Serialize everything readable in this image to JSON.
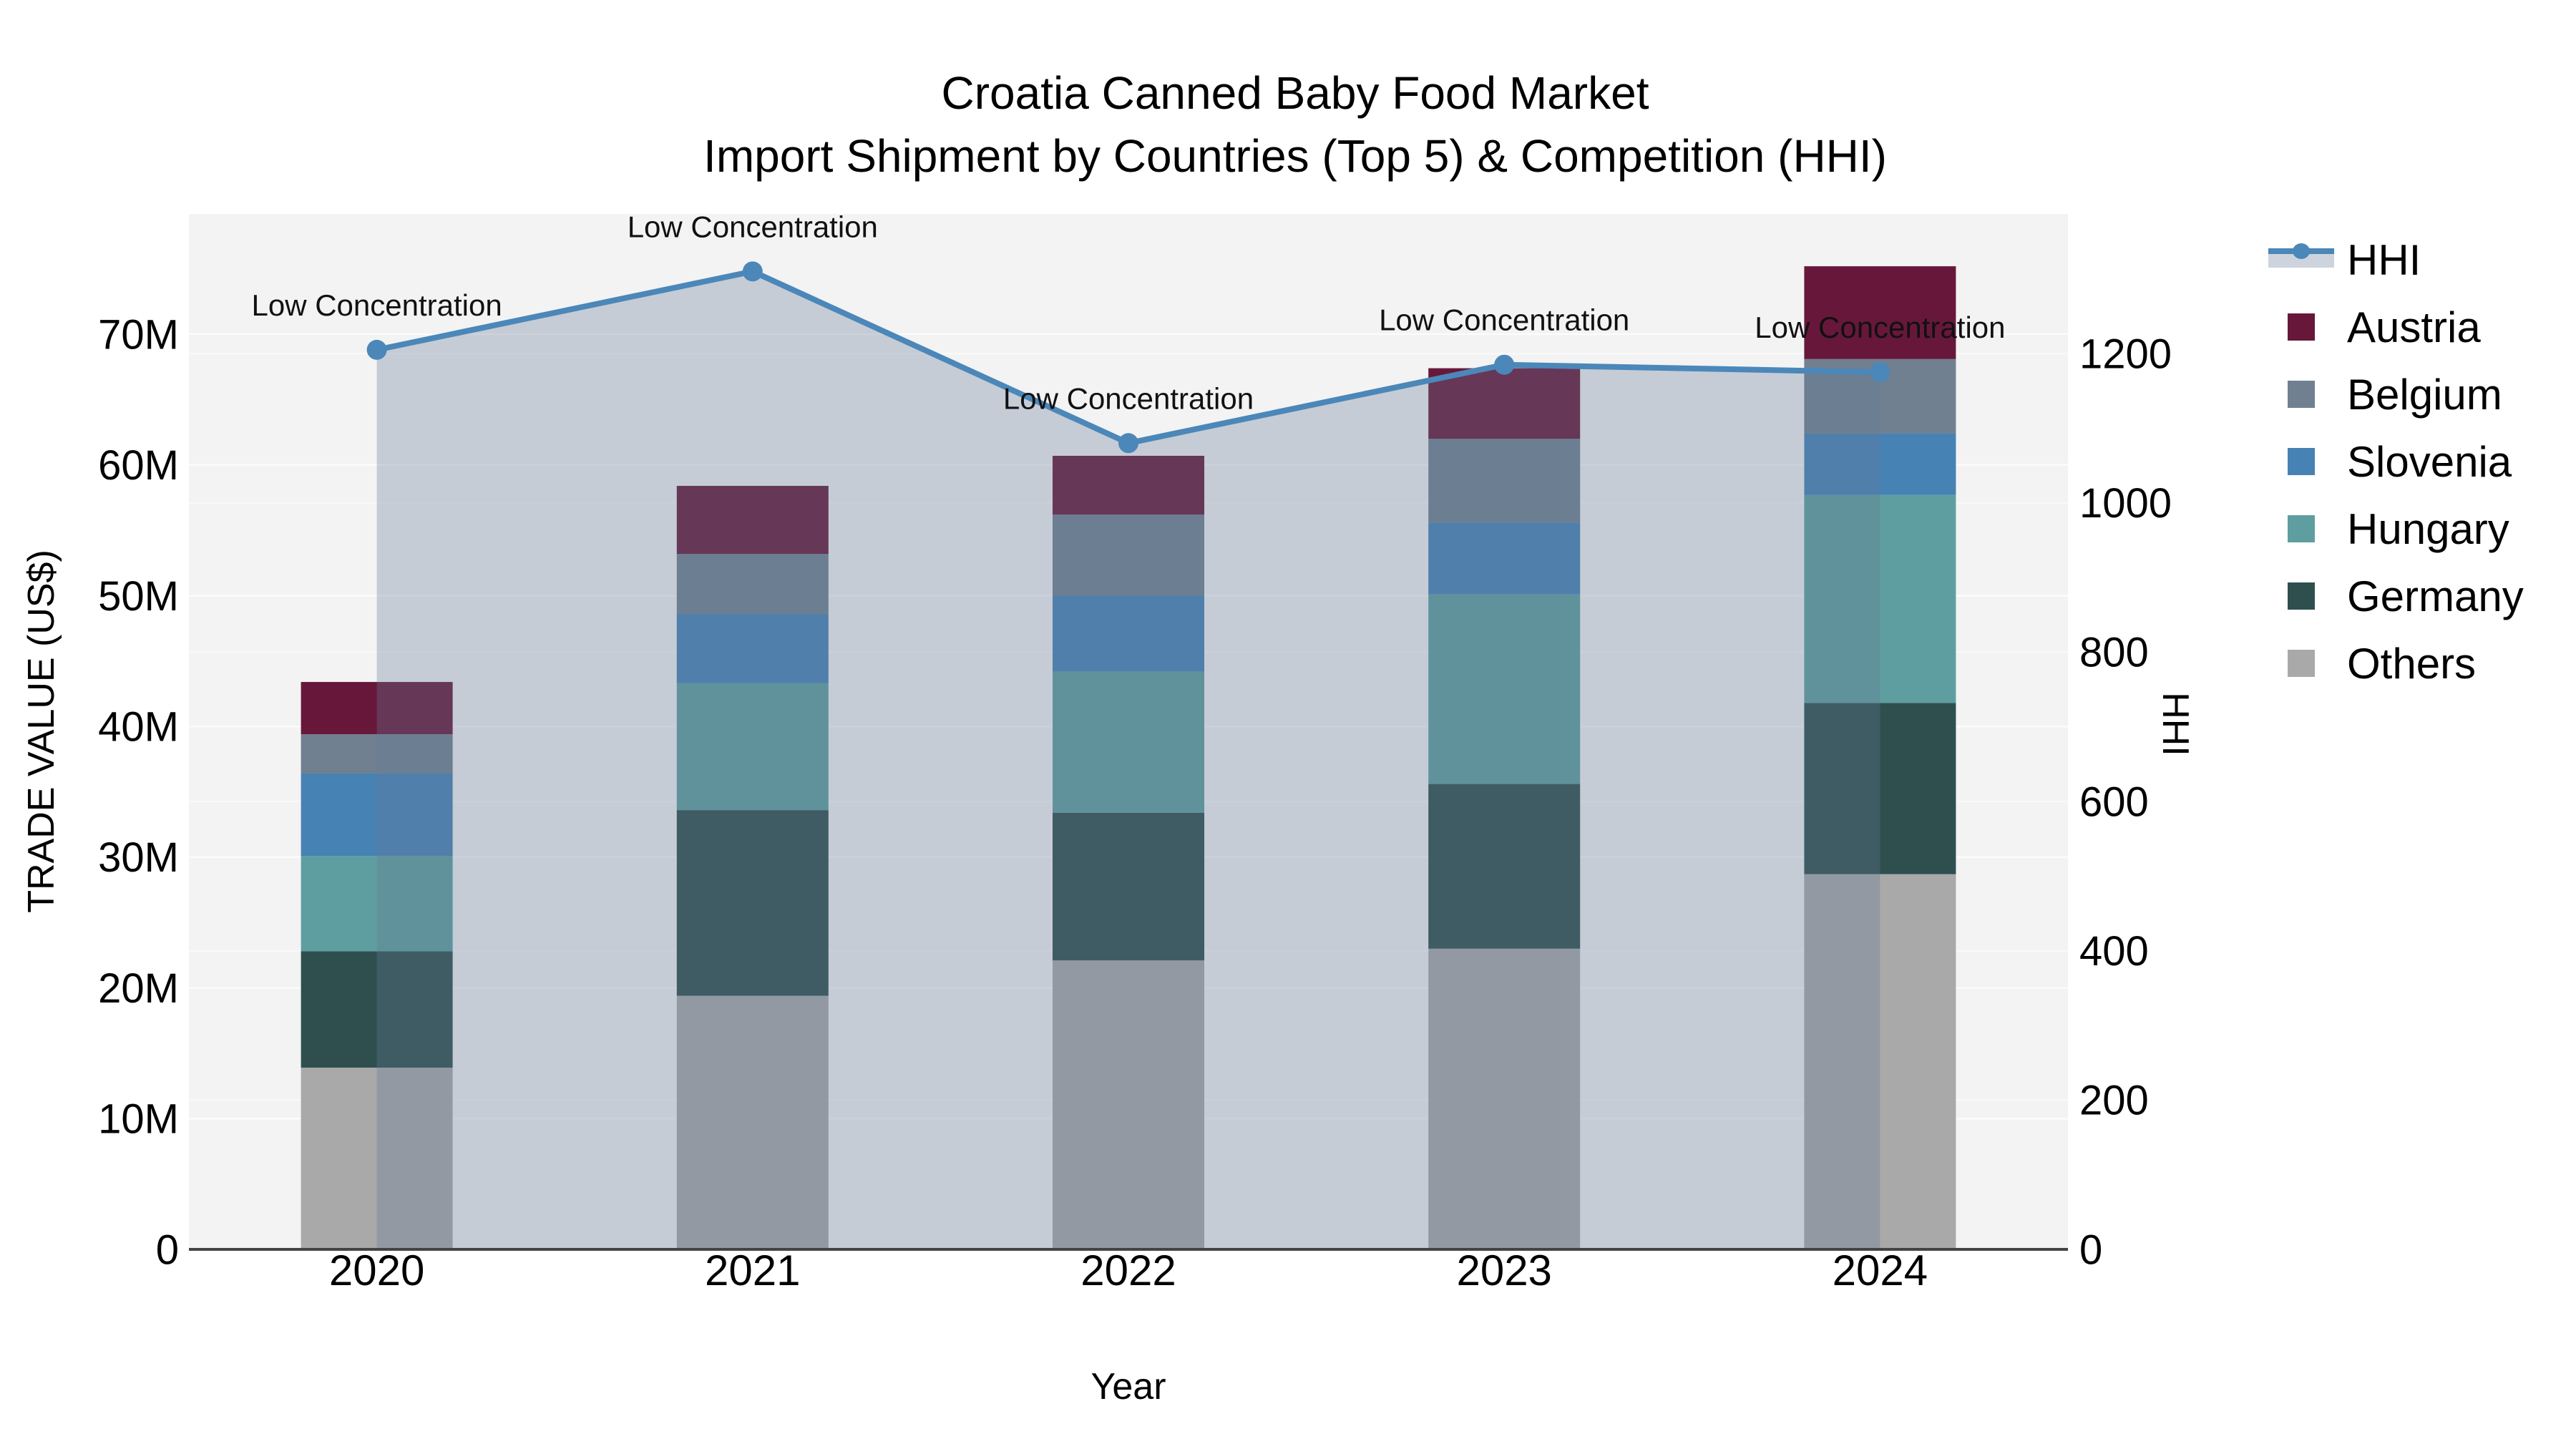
{
  "title": {
    "line1": "Croatia Canned Baby Food Market",
    "line2": "Import Shipment by Countries (Top 5) & Competition (HHI)"
  },
  "axis_titles": {
    "left": "TRADE VALUE (US$)",
    "right": "HHI",
    "x": "Year"
  },
  "annotation_text": "Low Concentration",
  "legend": [
    {
      "id": "hhi",
      "label": "HHI",
      "type": "line"
    },
    {
      "id": "austria",
      "label": "Austria",
      "type": "swatch"
    },
    {
      "id": "belgium",
      "label": "Belgium",
      "type": "swatch"
    },
    {
      "id": "slovenia",
      "label": "Slovenia",
      "type": "swatch"
    },
    {
      "id": "hungary",
      "label": "Hungary",
      "type": "swatch"
    },
    {
      "id": "germany",
      "label": "Germany",
      "type": "swatch"
    },
    {
      "id": "others",
      "label": "Others",
      "type": "swatch"
    }
  ],
  "colors": {
    "austria": "#67183a",
    "belgium": "#708090",
    "slovenia": "#4682b4",
    "hungary": "#5f9ea0",
    "germany": "#2f4f4f",
    "others": "#a9a9a9",
    "hhi_line": "#4b87b9",
    "area_fill": "rgba(100,120,150,0.32)",
    "plot_bg": "#f3f3f3",
    "gridline": "#ffffff",
    "axis_line": "#444444",
    "text": "#000000"
  },
  "chart_data": {
    "type": "combo_stacked_bar_line",
    "title": "Croatia Canned Baby Food Market — Import Shipment by Countries (Top 5) & Competition (HHI)",
    "xlabel": "Year",
    "ylabel_left": "TRADE VALUE (US$)",
    "ylabel_right": "HHI",
    "x": [
      "2020",
      "2021",
      "2022",
      "2023",
      "2024"
    ],
    "bar_unit": "million US$",
    "bar_series": [
      {
        "name": "Others",
        "color_key": "others",
        "values": [
          13.9,
          19.4,
          22.1,
          23.0,
          28.7
        ]
      },
      {
        "name": "Germany",
        "color_key": "germany",
        "values": [
          8.9,
          14.2,
          11.3,
          12.6,
          13.1
        ]
      },
      {
        "name": "Hungary",
        "color_key": "hungary",
        "values": [
          7.3,
          9.7,
          10.8,
          14.5,
          15.9
        ]
      },
      {
        "name": "Slovenia",
        "color_key": "slovenia",
        "values": [
          6.3,
          5.3,
          5.8,
          5.5,
          4.7
        ]
      },
      {
        "name": "Belgium",
        "color_key": "belgium",
        "values": [
          3.0,
          4.6,
          6.2,
          6.4,
          5.7
        ]
      },
      {
        "name": "Austria",
        "color_key": "austria",
        "values": [
          4.0,
          5.2,
          4.5,
          5.4,
          7.1
        ]
      }
    ],
    "bar_totals": [
      43.4,
      58.4,
      60.7,
      67.4,
      75.2
    ],
    "line_series": {
      "name": "HHI",
      "axis": "right",
      "fill_to_zero": true,
      "values": [
        1205,
        1310,
        1080,
        1185,
        1175
      ]
    },
    "annotations": [
      "Low Concentration",
      "Low Concentration",
      "Low Concentration",
      "Low Concentration",
      "Low Concentration"
    ],
    "left_axis": {
      "ticks": [
        0,
        10,
        20,
        30,
        40,
        50,
        60,
        70
      ],
      "tick_labels": [
        "0",
        "10M",
        "20M",
        "30M",
        "40M",
        "50M",
        "60M",
        "70M"
      ],
      "max": 79.2,
      "grid": true
    },
    "right_axis": {
      "ticks": [
        0,
        200,
        400,
        600,
        800,
        1000,
        1200
      ],
      "tick_labels": [
        "0",
        "200",
        "400",
        "600",
        "800",
        "1000",
        "1200"
      ],
      "max": 1387,
      "grid": true
    },
    "legend_position": "right"
  }
}
